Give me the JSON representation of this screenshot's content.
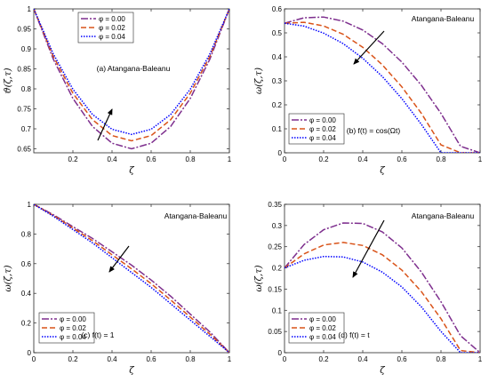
{
  "colors": {
    "phi0": "#7E2F8E",
    "phi1": "#D95319",
    "phi2": "#0000FF",
    "axis": "#262626"
  },
  "chart_data": [
    {
      "type": "line",
      "annotation_text": "(a) Atangana-Baleanu",
      "xlabel": "ζ",
      "ylabel": "ϑ(ζ,τ)",
      "xlim": [
        0,
        1
      ],
      "ylim": [
        0.64,
        1.0
      ],
      "xticks": [
        0.2,
        0.4,
        0.6,
        0.8,
        1
      ],
      "xtick_labels": [
        "0.2",
        "0.4",
        "0.6",
        "0.8",
        "1"
      ],
      "yticks": [
        0.65,
        0.7,
        0.75,
        0.8,
        0.85,
        0.9,
        0.95,
        1
      ],
      "ytick_labels": [
        "0.65",
        "0.7",
        "0.75",
        "0.8",
        "0.85",
        "0.9",
        "0.95",
        "1"
      ],
      "legend": "top-center",
      "arrow": "up",
      "series": [
        {
          "name": "φ = 0.00",
          "x": [
            0,
            0.1,
            0.2,
            0.3,
            0.4,
            0.5,
            0.6,
            0.7,
            0.8,
            0.9,
            1
          ],
          "y": [
            1.0,
            0.874,
            0.776,
            0.706,
            0.664,
            0.65,
            0.664,
            0.706,
            0.776,
            0.874,
            1.0
          ]
        },
        {
          "name": "φ = 0.02",
          "x": [
            0,
            0.1,
            0.2,
            0.3,
            0.4,
            0.5,
            0.6,
            0.7,
            0.8,
            0.9,
            1
          ],
          "y": [
            1.0,
            0.881,
            0.789,
            0.723,
            0.683,
            0.67,
            0.683,
            0.723,
            0.789,
            0.881,
            1.0
          ]
        },
        {
          "name": "φ = 0.04",
          "x": [
            0,
            0.1,
            0.2,
            0.3,
            0.4,
            0.5,
            0.6,
            0.7,
            0.8,
            0.9,
            1
          ],
          "y": [
            1.0,
            0.887,
            0.799,
            0.736,
            0.699,
            0.686,
            0.699,
            0.736,
            0.799,
            0.887,
            1.0
          ]
        }
      ]
    },
    {
      "type": "line",
      "annotation_text": "Atangana-Baleanu",
      "inner_label": "(b) f(t) = cos(Ωt)",
      "xlabel": "ζ",
      "ylabel": "ω(ζ,τ)",
      "xlim": [
        0,
        1
      ],
      "ylim": [
        0,
        0.6
      ],
      "xticks": [
        0,
        0.2,
        0.4,
        0.6,
        0.8,
        1
      ],
      "xtick_labels": [
        "0",
        "0.2",
        "0.4",
        "0.6",
        "0.8",
        "1"
      ],
      "yticks": [
        0,
        0.1,
        0.2,
        0.3,
        0.4,
        0.5,
        0.6
      ],
      "ytick_labels": [
        "0",
        "0.1",
        "0.2",
        "0.3",
        "0.4",
        "0.5",
        "0.6"
      ],
      "legend": "center-left",
      "arrow": "down-left",
      "series": [
        {
          "name": "φ = 0.00",
          "x": [
            0,
            0.1,
            0.2,
            0.3,
            0.4,
            0.5,
            0.6,
            0.7,
            0.8,
            0.9,
            1
          ],
          "y": [
            0.54,
            0.563,
            0.566,
            0.549,
            0.512,
            0.455,
            0.378,
            0.281,
            0.164,
            0.027,
            0
          ]
        },
        {
          "name": "φ = 0.02",
          "x": [
            0,
            0.1,
            0.2,
            0.3,
            0.4,
            0.5,
            0.6,
            0.7,
            0.8,
            0.9,
            1
          ],
          "y": [
            0.54,
            0.544,
            0.529,
            0.494,
            0.44,
            0.367,
            0.275,
            0.164,
            0.033,
            0,
            0
          ]
        },
        {
          "name": "φ = 0.04",
          "x": [
            0,
            0.1,
            0.2,
            0.3,
            0.4,
            0.5,
            0.6,
            0.7,
            0.8,
            0.9,
            1
          ],
          "y": [
            0.54,
            0.528,
            0.499,
            0.455,
            0.394,
            0.318,
            0.226,
            0.118,
            0.0,
            0,
            0
          ]
        }
      ]
    },
    {
      "type": "line",
      "annotation_text": "Atangana-Baleanu",
      "inner_label": "(c) f(t) = 1",
      "xlabel": "ζ",
      "ylabel": "ω(ζ,τ)",
      "xlim": [
        0,
        1
      ],
      "ylim": [
        0,
        1
      ],
      "xticks": [
        0,
        0.2,
        0.4,
        0.6,
        0.8,
        1
      ],
      "xtick_labels": [
        "0",
        "0.2",
        "0.4",
        "0.6",
        "0.8",
        "1"
      ],
      "yticks": [
        0,
        0.2,
        0.4,
        0.6,
        0.8,
        1
      ],
      "ytick_labels": [
        "0",
        "0.2",
        "0.4",
        "0.6",
        "0.8",
        "1"
      ],
      "legend": "bottom-left",
      "arrow": "down-left",
      "series": [
        {
          "name": "φ = 0.00",
          "x": [
            0,
            0.1,
            0.2,
            0.3,
            0.4,
            0.5,
            0.6,
            0.7,
            0.8,
            0.9,
            1
          ],
          "y": [
            1.0,
            0.93,
            0.85,
            0.77,
            0.68,
            0.59,
            0.49,
            0.38,
            0.26,
            0.14,
            0
          ]
        },
        {
          "name": "φ = 0.02",
          "x": [
            0,
            0.1,
            0.2,
            0.3,
            0.4,
            0.5,
            0.6,
            0.7,
            0.8,
            0.9,
            1
          ],
          "y": [
            1.0,
            0.925,
            0.84,
            0.755,
            0.66,
            0.565,
            0.465,
            0.355,
            0.24,
            0.125,
            0
          ]
        },
        {
          "name": "φ = 0.04",
          "x": [
            0,
            0.1,
            0.2,
            0.3,
            0.4,
            0.5,
            0.6,
            0.7,
            0.8,
            0.9,
            1
          ],
          "y": [
            1.0,
            0.92,
            0.83,
            0.74,
            0.64,
            0.54,
            0.44,
            0.33,
            0.22,
            0.11,
            0
          ]
        }
      ]
    },
    {
      "type": "line",
      "annotation_text": "Atangana-Baleanu",
      "inner_label": "(d) f(t) = t",
      "xlabel": "ζ",
      "ylabel": "ω(ζ,τ)",
      "xlim": [
        0,
        1
      ],
      "ylim": [
        0,
        0.35
      ],
      "xticks": [
        0,
        0.2,
        0.4,
        0.6,
        0.8,
        1
      ],
      "xtick_labels": [
        "0",
        "0.2",
        "0.4",
        "0.6",
        "0.8",
        "1"
      ],
      "yticks": [
        0,
        0.05,
        0.1,
        0.15,
        0.2,
        0.25,
        0.3,
        0.35
      ],
      "ytick_labels": [
        "0",
        "0.05",
        "0.1",
        "0.15",
        "0.2",
        "0.25",
        "0.3",
        "0.35"
      ],
      "legend": "bottom-left",
      "arrow": "down-left",
      "series": [
        {
          "name": "φ = 0.00",
          "x": [
            0,
            0.1,
            0.2,
            0.3,
            0.4,
            0.5,
            0.6,
            0.7,
            0.8,
            0.9,
            1
          ],
          "y": [
            0.2,
            0.255,
            0.29,
            0.306,
            0.305,
            0.285,
            0.247,
            0.19,
            0.12,
            0.04,
            0
          ]
        },
        {
          "name": "φ = 0.02",
          "x": [
            0,
            0.1,
            0.2,
            0.3,
            0.4,
            0.5,
            0.6,
            0.7,
            0.8,
            0.9,
            1
          ],
          "y": [
            0.2,
            0.233,
            0.254,
            0.26,
            0.253,
            0.231,
            0.195,
            0.144,
            0.08,
            0.005,
            0
          ]
        },
        {
          "name": "φ = 0.04",
          "x": [
            0,
            0.1,
            0.2,
            0.3,
            0.4,
            0.5,
            0.6,
            0.7,
            0.8,
            0.9,
            1
          ],
          "y": [
            0.2,
            0.218,
            0.227,
            0.226,
            0.214,
            0.19,
            0.155,
            0.108,
            0.05,
            0.0,
            0
          ]
        }
      ]
    }
  ]
}
